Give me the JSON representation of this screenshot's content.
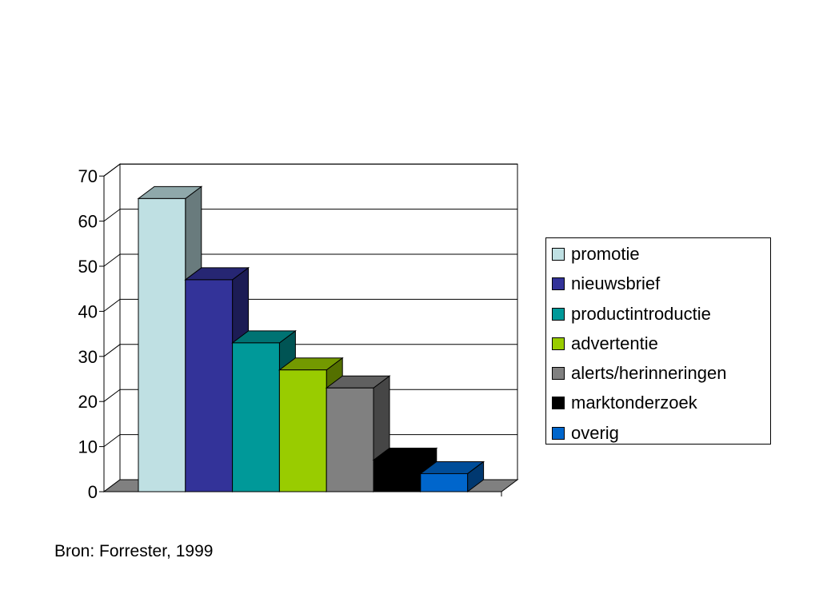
{
  "chart_data": {
    "type": "bar",
    "style": "3d-column",
    "title": "",
    "xlabel": "",
    "ylabel": "",
    "ylim": [
      0,
      70
    ],
    "yticks": [
      "0",
      "10",
      "20",
      "30",
      "40",
      "50",
      "60",
      "70"
    ],
    "grid": true,
    "legend_position": "right",
    "series": [
      {
        "name": "promotie",
        "value": 65,
        "color": "#bfe0e3"
      },
      {
        "name": "nieuwsbrief",
        "value": 47,
        "color": "#333399"
      },
      {
        "name": "productintroductie",
        "value": 33,
        "color": "#009999"
      },
      {
        "name": "advertentie",
        "value": 27,
        "color": "#99cc00"
      },
      {
        "name": "alerts/herinneringen",
        "value": 23,
        "color": "#808080"
      },
      {
        "name": "marktonderzoek",
        "value": 7,
        "color": "#000000"
      },
      {
        "name": "overig",
        "value": 4,
        "color": "#0066cc"
      }
    ]
  },
  "source": "Bron: Forrester, 1999"
}
